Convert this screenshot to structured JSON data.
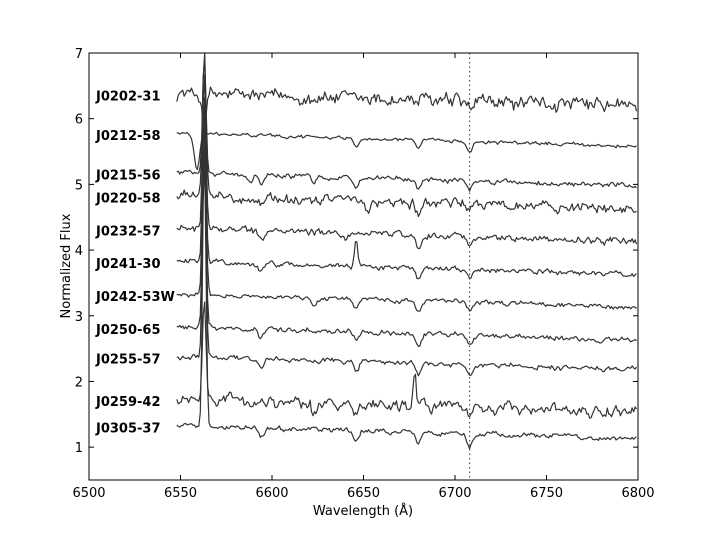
{
  "chart_data": {
    "type": "line",
    "xlabel": "Wavelength (Å)",
    "ylabel": "Normalized Flux",
    "xlim": [
      6500,
      6800
    ],
    "ylim": [
      0.5,
      7
    ],
    "x_ticks": [
      6500,
      6550,
      6600,
      6650,
      6700,
      6750,
      6800
    ],
    "y_ticks": [
      1,
      2,
      3,
      4,
      5,
      6,
      7
    ],
    "grid": false,
    "legend": "none",
    "line_color": "#333333",
    "reference_line": {
      "x": 6708,
      "style": "dotted"
    },
    "x_start": 6548,
    "x_end": 6800,
    "series": [
      {
        "name": "J0202-31",
        "offset": 6.3,
        "noise": 0.09,
        "halpha": 0.0,
        "li": 0.12,
        "lines": [
          [
            6563,
            0.55,
            1.5
          ]
        ]
      },
      {
        "name": "J0212-58",
        "offset": 5.7,
        "noise": 0.02,
        "halpha": 0.0,
        "li": 0.15,
        "lines": [
          [
            6559,
            0.55,
            2.0
          ],
          [
            6646,
            0.12,
            2.0
          ],
          [
            6680,
            0.15,
            2.0
          ]
        ]
      },
      {
        "name": "J0215-56",
        "offset": 5.1,
        "noise": 0.03,
        "halpha": 1.8,
        "li": 0.14,
        "lines": [
          [
            6588,
            0.12,
            2.0
          ],
          [
            6594,
            0.14,
            1.6
          ],
          [
            6623,
            0.12,
            2.0
          ],
          [
            6646,
            0.12,
            2.0
          ],
          [
            6680,
            0.15,
            2.0
          ]
        ]
      },
      {
        "name": "J0220-58",
        "offset": 4.75,
        "noise": 0.06,
        "halpha": 2.2,
        "li": 0.12,
        "lines": [
          [
            6594,
            0.12,
            2.0
          ],
          [
            6652,
            0.18,
            2.0
          ],
          [
            6680,
            0.18,
            2.0
          ]
        ]
      },
      {
        "name": "J0232-57",
        "offset": 4.25,
        "noise": 0.04,
        "halpha": 2.4,
        "li": 0.15,
        "lines": [
          [
            6594,
            0.12,
            2.0
          ],
          [
            6640,
            0.12,
            2.0
          ],
          [
            6680,
            0.18,
            2.0
          ]
        ]
      },
      {
        "name": "J0241-30",
        "offset": 3.75,
        "noise": 0.03,
        "halpha": 2.6,
        "li": 0.14,
        "lines": [
          [
            6594,
            0.12,
            2.0
          ],
          [
            6646,
            -0.45,
            1.2
          ],
          [
            6680,
            0.2,
            2.0
          ]
        ]
      },
      {
        "name": "J0242-53W",
        "offset": 3.25,
        "noise": 0.03,
        "halpha": 2.8,
        "li": 0.14,
        "lines": [
          [
            6623,
            0.12,
            2.0
          ],
          [
            6646,
            0.14,
            2.0
          ],
          [
            6680,
            0.18,
            2.0
          ]
        ]
      },
      {
        "name": "J0250-65",
        "offset": 2.75,
        "noise": 0.03,
        "halpha": 3.0,
        "li": 0.16,
        "lines": [
          [
            6594,
            0.12,
            2.0
          ],
          [
            6646,
            0.12,
            2.0
          ],
          [
            6680,
            0.18,
            2.0
          ]
        ]
      },
      {
        "name": "J0255-57",
        "offset": 2.3,
        "noise": 0.03,
        "halpha": 3.2,
        "li": 0.16,
        "lines": [
          [
            6594,
            0.14,
            2.0
          ],
          [
            6646,
            0.14,
            2.0
          ],
          [
            6680,
            0.18,
            2.0
          ]
        ]
      },
      {
        "name": "J0259-42",
        "offset": 1.65,
        "noise": 0.07,
        "halpha": 1.5,
        "li": 0.12,
        "lines": [
          [
            6623,
            0.12,
            2.0
          ],
          [
            6646,
            0.14,
            2.0
          ],
          [
            6678,
            -0.5,
            1.0
          ]
        ]
      },
      {
        "name": "J0305-37",
        "offset": 1.25,
        "noise": 0.03,
        "halpha": 4.2,
        "li": 0.2,
        "lines": [
          [
            6594,
            0.14,
            2.0
          ],
          [
            6646,
            0.14,
            2.0
          ],
          [
            6680,
            0.18,
            2.0
          ]
        ]
      }
    ]
  }
}
